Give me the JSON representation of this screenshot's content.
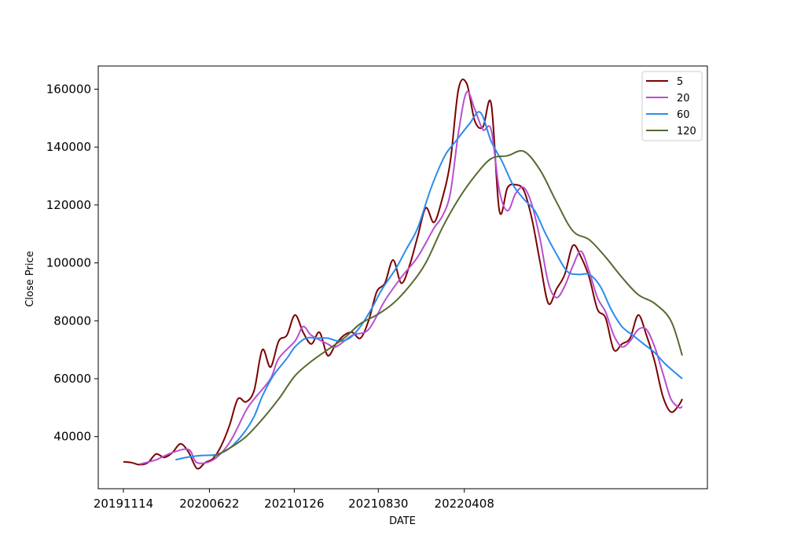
{
  "chart_data": {
    "type": "line",
    "xlabel": "DATE",
    "ylabel": "Close Price",
    "xticks": [
      "20191114",
      "20200622",
      "20210126",
      "20210830",
      "20220408"
    ],
    "yticks": [
      40000,
      60000,
      80000,
      100000,
      120000,
      140000,
      160000
    ],
    "ylim": [
      22000,
      168000
    ],
    "legend_position": "top-right",
    "series": [
      {
        "name": "5",
        "color": "#7b0000",
        "points": [
          [
            "20191114",
            31300
          ],
          [
            "20191205",
            31000
          ],
          [
            "20191226",
            30300
          ],
          [
            "20200116",
            31000
          ],
          [
            "20200206",
            34000
          ],
          [
            "20200227",
            32800
          ],
          [
            "20200319",
            34500
          ],
          [
            "20200409",
            37500
          ],
          [
            "20200430",
            34500
          ],
          [
            "20200521",
            29000
          ],
          [
            "20200611",
            31000
          ],
          [
            "20200702",
            32500
          ],
          [
            "20200723",
            37000
          ],
          [
            "20200813",
            44000
          ],
          [
            "20200903",
            53000
          ],
          [
            "20200924",
            52000
          ],
          [
            "20201015",
            56000
          ],
          [
            "20201105",
            70000
          ],
          [
            "20201126",
            64000
          ],
          [
            "20201217",
            73000
          ],
          [
            "20210107",
            75000
          ],
          [
            "20210128",
            82000
          ],
          [
            "20210218",
            76000
          ],
          [
            "20210311",
            72000
          ],
          [
            "20210401",
            76000
          ],
          [
            "20210422",
            68000
          ],
          [
            "20210513",
            72000
          ],
          [
            "20210603",
            75000
          ],
          [
            "20210624",
            76000
          ],
          [
            "20210715",
            74000
          ],
          [
            "20210805",
            80000
          ],
          [
            "20210826",
            90000
          ],
          [
            "20210916",
            93000
          ],
          [
            "20211007",
            101000
          ],
          [
            "20211028",
            93000
          ],
          [
            "20211118",
            99000
          ],
          [
            "20211209",
            109000
          ],
          [
            "20211230",
            119000
          ],
          [
            "20220120",
            114000
          ],
          [
            "20220210",
            122000
          ],
          [
            "20220303",
            135000
          ],
          [
            "20220324",
            160000
          ],
          [
            "20220414",
            162000
          ],
          [
            "20220505",
            149000
          ],
          [
            "20220526",
            147000
          ],
          [
            "20220616",
            155000
          ],
          [
            "20220707",
            118000
          ],
          [
            "20220728",
            126000
          ],
          [
            "20220818",
            127000
          ],
          [
            "20220908",
            125000
          ],
          [
            "20220929",
            115000
          ],
          [
            "20221020",
            100000
          ],
          [
            "20221110",
            86000
          ],
          [
            "20221201",
            91000
          ],
          [
            "20221222",
            96000
          ],
          [
            "20230112",
            106000
          ],
          [
            "20230202",
            102000
          ],
          [
            "20230223",
            95000
          ],
          [
            "20230316",
            84000
          ],
          [
            "20230406",
            81000
          ],
          [
            "20230427",
            70000
          ],
          [
            "20230518",
            72000
          ],
          [
            "20230608",
            74000
          ],
          [
            "20230629",
            82000
          ],
          [
            "20230720",
            75000
          ],
          [
            "20230810",
            66000
          ],
          [
            "20230831",
            54000
          ],
          [
            "20230921",
            48500
          ],
          [
            "20231012",
            51000
          ],
          [
            "20231020",
            53000
          ]
        ]
      },
      {
        "name": "20",
        "color": "#b84fd0",
        "points": [
          [
            "20191226",
            30500
          ],
          [
            "20200206",
            32000
          ],
          [
            "20200319",
            34500
          ],
          [
            "20200430",
            35500
          ],
          [
            "20200521",
            31000
          ],
          [
            "20200702",
            32000
          ],
          [
            "20200813",
            38000
          ],
          [
            "20200924",
            49000
          ],
          [
            "20201015",
            53000
          ],
          [
            "20201126",
            60000
          ],
          [
            "20201217",
            67000
          ],
          [
            "20210128",
            73000
          ],
          [
            "20210218",
            78000
          ],
          [
            "20210311",
            75000
          ],
          [
            "20210422",
            72000
          ],
          [
            "20210513",
            71000
          ],
          [
            "20210624",
            75000
          ],
          [
            "20210805",
            77000
          ],
          [
            "20210916",
            87000
          ],
          [
            "20211028",
            95000
          ],
          [
            "20211209",
            102000
          ],
          [
            "20220120",
            112000
          ],
          [
            "20220210",
            116000
          ],
          [
            "20220303",
            124000
          ],
          [
            "20220324",
            145000
          ],
          [
            "20220414",
            159000
          ],
          [
            "20220505",
            153000
          ],
          [
            "20220526",
            146000
          ],
          [
            "20220616",
            146000
          ],
          [
            "20220707",
            125000
          ],
          [
            "20220728",
            118000
          ],
          [
            "20220818",
            124000
          ],
          [
            "20220908",
            126000
          ],
          [
            "20220929",
            120000
          ],
          [
            "20221020",
            108000
          ],
          [
            "20221110",
            93000
          ],
          [
            "20221201",
            88000
          ],
          [
            "20221222",
            92000
          ],
          [
            "20230112",
            99000
          ],
          [
            "20230202",
            104000
          ],
          [
            "20230223",
            97000
          ],
          [
            "20230316",
            88000
          ],
          [
            "20230406",
            83000
          ],
          [
            "20230427",
            75000
          ],
          [
            "20230518",
            71000
          ],
          [
            "20230608",
            73000
          ],
          [
            "20230629",
            77000
          ],
          [
            "20230720",
            77000
          ],
          [
            "20230810",
            71000
          ],
          [
            "20230831",
            62000
          ],
          [
            "20230921",
            53000
          ],
          [
            "20231012",
            50000
          ],
          [
            "20231020",
            50500
          ]
        ]
      },
      {
        "name": "60",
        "color": "#2a8cee",
        "points": [
          [
            "20200327",
            32000
          ],
          [
            "20200501",
            33000
          ],
          [
            "20200605",
            33500
          ],
          [
            "20200710",
            33800
          ],
          [
            "20200813",
            36000
          ],
          [
            "20200917",
            41000
          ],
          [
            "20201015",
            47000
          ],
          [
            "20201105",
            54000
          ],
          [
            "20201203",
            61000
          ],
          [
            "20210107",
            67000
          ],
          [
            "20210128",
            71000
          ],
          [
            "20210225",
            74000
          ],
          [
            "20210325",
            74000
          ],
          [
            "20210422",
            74000
          ],
          [
            "20210520",
            73000
          ],
          [
            "20210617",
            74000
          ],
          [
            "20210715",
            78000
          ],
          [
            "20210812",
            84000
          ],
          [
            "20210909",
            91000
          ],
          [
            "20211014",
            98000
          ],
          [
            "20211111",
            105000
          ],
          [
            "20211209",
            112000
          ],
          [
            "20220113",
            126000
          ],
          [
            "20220217",
            137000
          ],
          [
            "20220317",
            142000
          ],
          [
            "20220421",
            148000
          ],
          [
            "20220519",
            152000
          ],
          [
            "20220616",
            142000
          ],
          [
            "20220714",
            135000
          ],
          [
            "20220811",
            127000
          ],
          [
            "20220908",
            122000
          ],
          [
            "20221006",
            118000
          ],
          [
            "20221103",
            110000
          ],
          [
            "20221201",
            103000
          ],
          [
            "20221229",
            97000
          ],
          [
            "20230126",
            96000
          ],
          [
            "20230223",
            96000
          ],
          [
            "20230323",
            92000
          ],
          [
            "20230420",
            84000
          ],
          [
            "20230518",
            78000
          ],
          [
            "20230615",
            75000
          ],
          [
            "20230713",
            72000
          ],
          [
            "20230810",
            69000
          ],
          [
            "20230907",
            65000
          ],
          [
            "20231020",
            60000
          ]
        ]
      },
      {
        "name": "120",
        "color": "#556b2f",
        "points": [
          [
            "20200702",
            33000
          ],
          [
            "20200813",
            36000
          ],
          [
            "20200924",
            40000
          ],
          [
            "20201105",
            46000
          ],
          [
            "20201217",
            53000
          ],
          [
            "20210128",
            61000
          ],
          [
            "20210311",
            66000
          ],
          [
            "20210422",
            70000
          ],
          [
            "20210603",
            74000
          ],
          [
            "20210715",
            79000
          ],
          [
            "20210826",
            82000
          ],
          [
            "20211007",
            86000
          ],
          [
            "20211118",
            92000
          ],
          [
            "20211230",
            100000
          ],
          [
            "20220210",
            112000
          ],
          [
            "20220324",
            122000
          ],
          [
            "20220505",
            130000
          ],
          [
            "20220616",
            136000
          ],
          [
            "20220728",
            137000
          ],
          [
            "20220908",
            138500
          ],
          [
            "20221020",
            132000
          ],
          [
            "20221201",
            121000
          ],
          [
            "20230112",
            111000
          ],
          [
            "20230223",
            108000
          ],
          [
            "20230406",
            102000
          ],
          [
            "20230518",
            95000
          ],
          [
            "20230629",
            89000
          ],
          [
            "20230810",
            86000
          ],
          [
            "20230921",
            80000
          ],
          [
            "20231020",
            68000
          ]
        ]
      }
    ]
  }
}
